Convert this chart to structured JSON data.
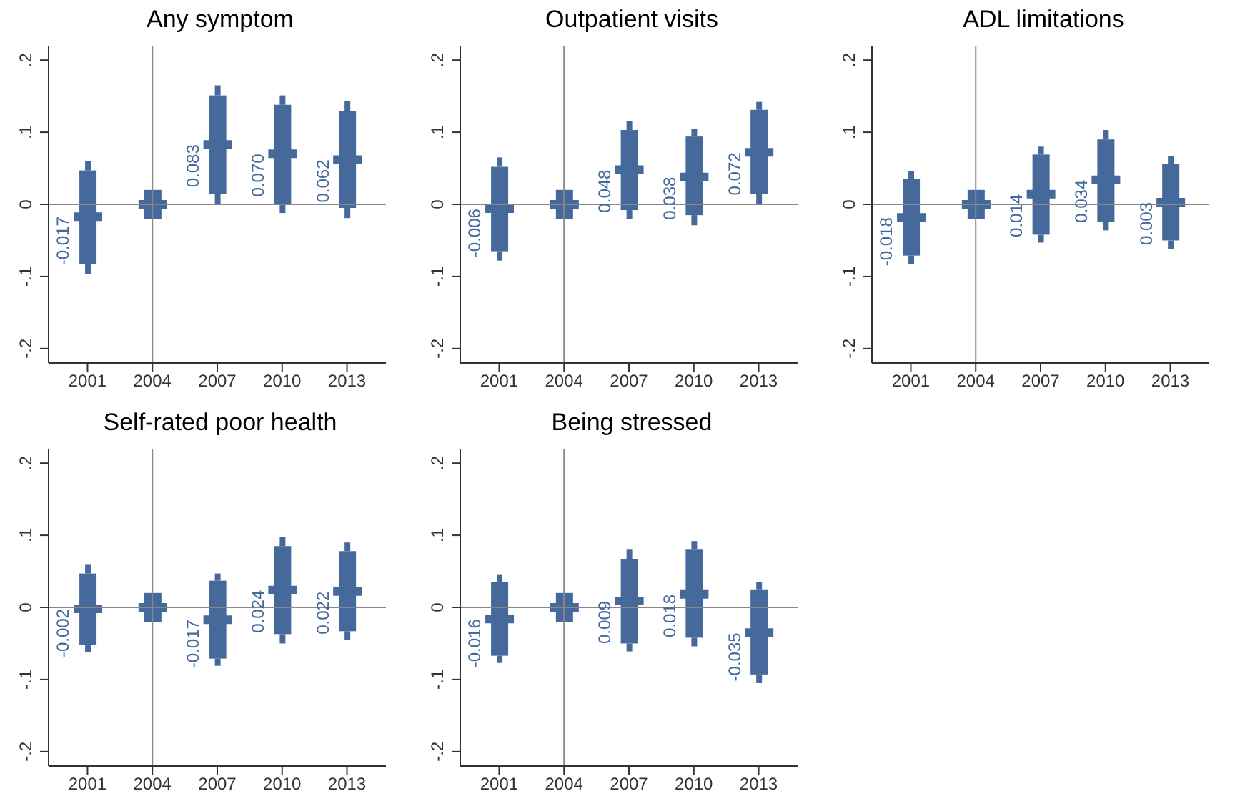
{
  "chart_data": [
    {
      "type": "box",
      "title": "Any symptom",
      "categories": [
        "2001",
        "2004",
        "2007",
        "2010",
        "2013"
      ],
      "color": "#44699a",
      "ylim": [
        -0.22,
        0.22
      ],
      "yticks": [
        {
          "value": -0.2,
          "label": "-.2"
        },
        {
          "value": -0.1,
          "label": "-.1"
        },
        {
          "value": 0,
          "label": "0"
        },
        {
          "value": 0.1,
          "label": ".1"
        },
        {
          "value": 0.2,
          "label": ".2"
        }
      ],
      "boxes": [
        {
          "low": -0.097,
          "q1": -0.083,
          "median": -0.017,
          "q3": 0.047,
          "high": 0.06
        },
        {
          "low": -0.02,
          "q1": -0.02,
          "median": 0,
          "q3": 0.02,
          "high": 0.02
        },
        {
          "low": 0.0,
          "q1": 0.014,
          "median": 0.083,
          "q3": 0.151,
          "high": 0.165
        },
        {
          "low": -0.012,
          "q1": 0.0,
          "median": 0.07,
          "q3": 0.138,
          "high": 0.151
        },
        {
          "low": -0.019,
          "q1": -0.005,
          "median": 0.062,
          "q3": 0.129,
          "high": 0.143
        }
      ],
      "ref_lines": [
        {
          "axis": "x",
          "value": "2004"
        },
        {
          "axis": "y",
          "value": 0
        }
      ],
      "annotations": [
        {
          "text": "-0.017",
          "x": "2001",
          "y": -0.017
        },
        {
          "text": "0.083",
          "x": "2007",
          "y": 0.083
        },
        {
          "text": "0.070",
          "x": "2010",
          "y": 0.07
        },
        {
          "text": "0.062",
          "x": "2013",
          "y": 0.062
        }
      ]
    },
    {
      "type": "box",
      "title": "Outpatient visits",
      "categories": [
        "2001",
        "2004",
        "2007",
        "2010",
        "2013"
      ],
      "color": "#44699a",
      "ylim": [
        -0.22,
        0.22
      ],
      "yticks": [
        {
          "value": -0.2,
          "label": "-.2"
        },
        {
          "value": -0.1,
          "label": "-.1"
        },
        {
          "value": 0,
          "label": "0"
        },
        {
          "value": 0.1,
          "label": ".1"
        },
        {
          "value": 0.2,
          "label": ".2"
        }
      ],
      "boxes": [
        {
          "low": -0.078,
          "q1": -0.065,
          "median": -0.006,
          "q3": 0.052,
          "high": 0.065
        },
        {
          "low": -0.02,
          "q1": -0.02,
          "median": 0,
          "q3": 0.02,
          "high": 0.02
        },
        {
          "low": -0.02,
          "q1": -0.008,
          "median": 0.048,
          "q3": 0.103,
          "high": 0.115
        },
        {
          "low": -0.029,
          "q1": -0.015,
          "median": 0.038,
          "q3": 0.094,
          "high": 0.105
        },
        {
          "low": 0.001,
          "q1": 0.014,
          "median": 0.072,
          "q3": 0.131,
          "high": 0.142
        }
      ],
      "ref_lines": [
        {
          "axis": "x",
          "value": "2004"
        },
        {
          "axis": "y",
          "value": 0
        }
      ],
      "annotations": [
        {
          "text": "-0.006",
          "x": "2001",
          "y": -0.006
        },
        {
          "text": "0.048",
          "x": "2007",
          "y": 0.048
        },
        {
          "text": "0.038",
          "x": "2010",
          "y": 0.038
        },
        {
          "text": "0.072",
          "x": "2013",
          "y": 0.072
        }
      ]
    },
    {
      "type": "box",
      "title": "ADL limitations",
      "categories": [
        "2001",
        "2004",
        "2007",
        "2010",
        "2013"
      ],
      "color": "#44699a",
      "ylim": [
        -0.22,
        0.22
      ],
      "yticks": [
        {
          "value": -0.2,
          "label": "-.2"
        },
        {
          "value": -0.1,
          "label": "-.1"
        },
        {
          "value": 0,
          "label": "0"
        },
        {
          "value": 0.1,
          "label": ".1"
        },
        {
          "value": 0.2,
          "label": ".2"
        }
      ],
      "boxes": [
        {
          "low": -0.083,
          "q1": -0.071,
          "median": -0.018,
          "q3": 0.035,
          "high": 0.046
        },
        {
          "low": -0.02,
          "q1": -0.02,
          "median": 0,
          "q3": 0.02,
          "high": 0.02
        },
        {
          "low": -0.053,
          "q1": -0.042,
          "median": 0.014,
          "q3": 0.069,
          "high": 0.08
        },
        {
          "low": -0.036,
          "q1": -0.024,
          "median": 0.034,
          "q3": 0.09,
          "high": 0.103
        },
        {
          "low": -0.062,
          "q1": -0.05,
          "median": 0.003,
          "q3": 0.056,
          "high": 0.067
        }
      ],
      "ref_lines": [
        {
          "axis": "x",
          "value": "2004"
        },
        {
          "axis": "y",
          "value": 0
        }
      ],
      "annotations": [
        {
          "text": "-0.018",
          "x": "2001",
          "y": -0.018
        },
        {
          "text": "0.014",
          "x": "2007",
          "y": 0.014
        },
        {
          "text": "0.034",
          "x": "2010",
          "y": 0.034
        },
        {
          "text": "0.003",
          "x": "2013",
          "y": 0.003
        }
      ]
    },
    {
      "type": "box",
      "title": "Self-rated poor health",
      "categories": [
        "2001",
        "2004",
        "2007",
        "2010",
        "2013"
      ],
      "color": "#44699a",
      "ylim": [
        -0.22,
        0.22
      ],
      "yticks": [
        {
          "value": -0.2,
          "label": "-.2"
        },
        {
          "value": -0.1,
          "label": "-.1"
        },
        {
          "value": 0,
          "label": "0"
        },
        {
          "value": 0.1,
          "label": ".1"
        },
        {
          "value": 0.2,
          "label": ".2"
        }
      ],
      "boxes": [
        {
          "low": -0.062,
          "q1": -0.052,
          "median": -0.002,
          "q3": 0.047,
          "high": 0.059
        },
        {
          "low": -0.02,
          "q1": -0.02,
          "median": 0,
          "q3": 0.02,
          "high": 0.02
        },
        {
          "low": -0.081,
          "q1": -0.071,
          "median": -0.017,
          "q3": 0.037,
          "high": 0.047
        },
        {
          "low": -0.05,
          "q1": -0.037,
          "median": 0.024,
          "q3": 0.085,
          "high": 0.098
        },
        {
          "low": -0.045,
          "q1": -0.033,
          "median": 0.022,
          "q3": 0.078,
          "high": 0.09
        }
      ],
      "ref_lines": [
        {
          "axis": "x",
          "value": "2004"
        },
        {
          "axis": "y",
          "value": 0
        }
      ],
      "annotations": [
        {
          "text": "-0.002",
          "x": "2001",
          "y": -0.002
        },
        {
          "text": "-0.017",
          "x": "2007",
          "y": -0.017
        },
        {
          "text": "0.024",
          "x": "2010",
          "y": 0.024
        },
        {
          "text": "0.022",
          "x": "2013",
          "y": 0.022
        }
      ]
    },
    {
      "type": "box",
      "title": "Being stressed",
      "categories": [
        "2001",
        "2004",
        "2007",
        "2010",
        "2013"
      ],
      "color": "#44699a",
      "ylim": [
        -0.22,
        0.22
      ],
      "yticks": [
        {
          "value": -0.2,
          "label": "-.2"
        },
        {
          "value": -0.1,
          "label": "-.1"
        },
        {
          "value": 0,
          "label": "0"
        },
        {
          "value": 0.1,
          "label": ".1"
        },
        {
          "value": 0.2,
          "label": ".2"
        }
      ],
      "boxes": [
        {
          "low": -0.077,
          "q1": -0.067,
          "median": -0.016,
          "q3": 0.035,
          "high": 0.045
        },
        {
          "low": -0.02,
          "q1": -0.02,
          "median": 0,
          "q3": 0.02,
          "high": 0.02
        },
        {
          "low": -0.061,
          "q1": -0.05,
          "median": 0.009,
          "q3": 0.067,
          "high": 0.08
        },
        {
          "low": -0.054,
          "q1": -0.042,
          "median": 0.018,
          "q3": 0.08,
          "high": 0.092
        },
        {
          "low": -0.105,
          "q1": -0.093,
          "median": -0.035,
          "q3": 0.024,
          "high": 0.035
        }
      ],
      "ref_lines": [
        {
          "axis": "x",
          "value": "2004"
        },
        {
          "axis": "y",
          "value": 0
        }
      ],
      "annotations": [
        {
          "text": "-0.016",
          "x": "2001",
          "y": -0.016
        },
        {
          "text": "0.009",
          "x": "2007",
          "y": 0.009
        },
        {
          "text": "0.018",
          "x": "2010",
          "y": 0.018
        },
        {
          "text": "-0.035",
          "x": "2013",
          "y": -0.035
        }
      ]
    }
  ]
}
